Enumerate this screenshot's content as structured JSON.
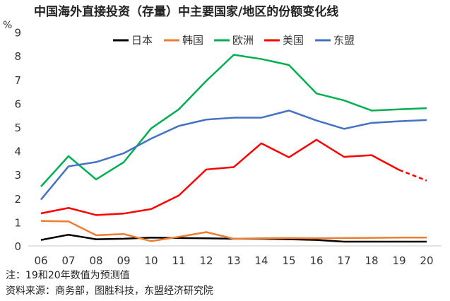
{
  "chart_data": {
    "type": "line",
    "title": "中国海外直接投资（存量）中主要国家/地区的份额变化线",
    "ylabel": "%",
    "ylim": [
      0,
      9
    ],
    "yticks": [
      0,
      1,
      2,
      3,
      4,
      5,
      6,
      7,
      8,
      9
    ],
    "categories": [
      "06",
      "07",
      "08",
      "09",
      "10",
      "11",
      "12",
      "13",
      "14",
      "15",
      "16",
      "17",
      "18",
      "19",
      "20"
    ],
    "legend_position": "top",
    "series": [
      {
        "name": "日本",
        "color": "#000000",
        "values": [
          0.25,
          0.47,
          0.28,
          0.3,
          0.35,
          0.33,
          0.32,
          0.3,
          0.3,
          0.28,
          0.25,
          0.18,
          0.18,
          0.18,
          0.18
        ]
      },
      {
        "name": "韩国",
        "color": "#ED7D31",
        "values": [
          1.05,
          1.03,
          0.45,
          0.5,
          0.2,
          0.38,
          0.58,
          0.3,
          0.32,
          0.33,
          0.32,
          0.33,
          0.34,
          0.35,
          0.35
        ]
      },
      {
        "name": "欧洲",
        "color": "#00B050",
        "values": [
          2.5,
          3.78,
          2.8,
          3.52,
          4.95,
          5.75,
          6.95,
          8.05,
          7.87,
          7.62,
          6.42,
          6.13,
          5.7,
          5.75,
          5.8
        ]
      },
      {
        "name": "美国",
        "color": "#FF0000",
        "values": [
          1.37,
          1.6,
          1.3,
          1.36,
          1.55,
          2.12,
          3.22,
          3.32,
          4.32,
          3.73,
          4.47,
          3.75,
          3.82,
          3.2,
          2.75
        ],
        "dashed_last_segment": true
      },
      {
        "name": "东盟",
        "color": "#4472C4",
        "values": [
          1.95,
          3.35,
          3.53,
          3.9,
          4.52,
          5.05,
          5.32,
          5.4,
          5.4,
          5.7,
          5.28,
          4.93,
          5.18,
          5.25,
          5.3
        ]
      }
    ],
    "notes": [
      "注：19和20年数值为预测值",
      "资料来源：商务部，图胜科技，东盟经济研究院"
    ]
  }
}
